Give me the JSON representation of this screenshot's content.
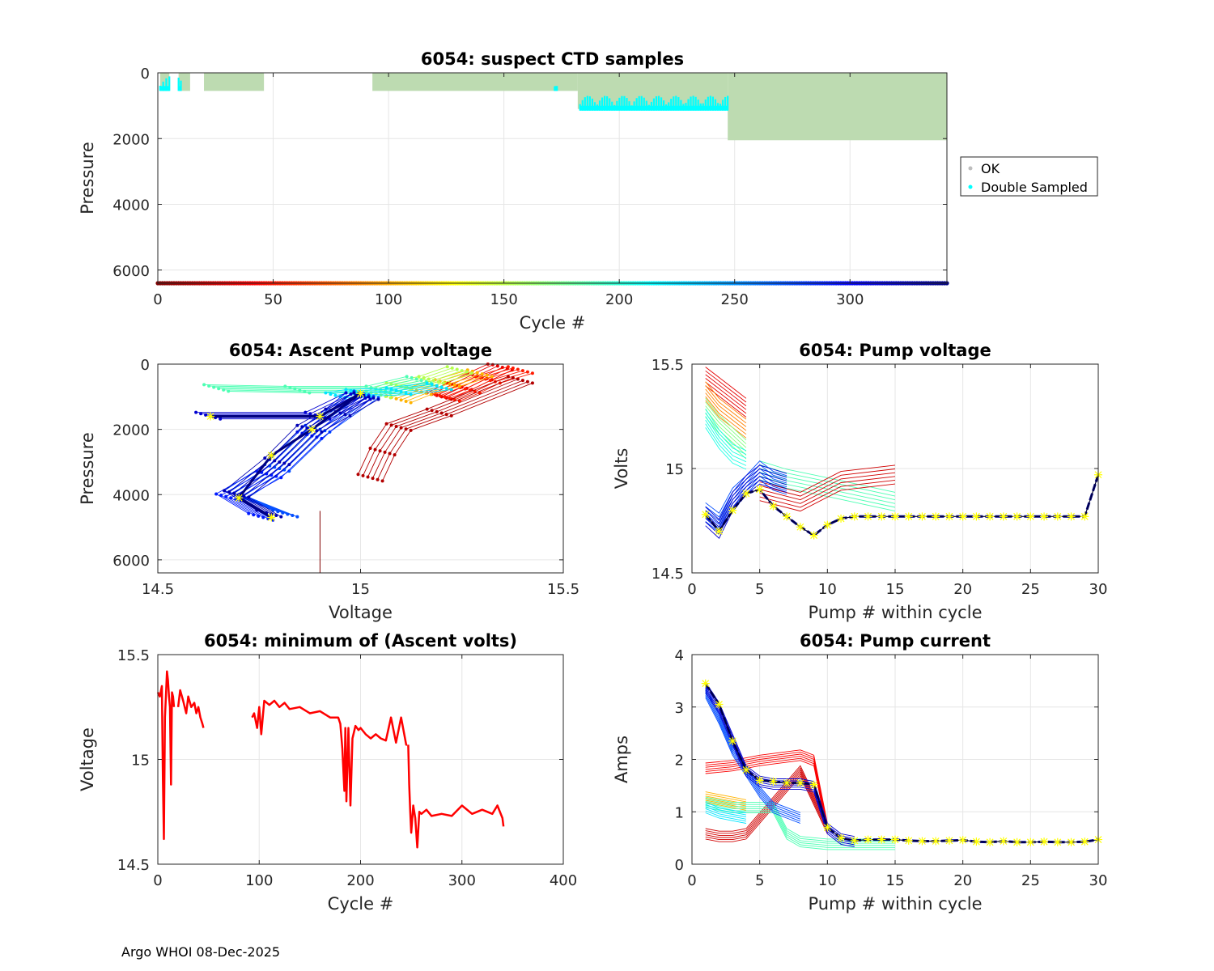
{
  "footer": "Argo WHOI 08-Dec-2025",
  "colors": {
    "ok": "#bddbb1",
    "double": "#00ffff",
    "cycle_line": "#ff0000",
    "ref": "#000080",
    "star": "#ffff00"
  },
  "chart_data": [
    {
      "id": "suspect",
      "type": "scatter",
      "title": "6054: suspect CTD samples",
      "xlabel": "Cycle #",
      "ylabel": "Pressure",
      "xlim": [
        0,
        342
      ],
      "ylim": [
        6400,
        0
      ],
      "xticks": [
        0,
        50,
        100,
        150,
        200,
        250,
        300
      ],
      "yticks": [
        0,
        2000,
        4000,
        6000
      ],
      "legend": {
        "position": "right",
        "items": [
          "OK",
          "Double Sampled"
        ]
      },
      "ok_blocks": [
        {
          "x": [
            1,
            5
          ],
          "p": [
            0,
            550
          ]
        },
        {
          "x": [
            9,
            14
          ],
          "p": [
            0,
            550
          ]
        },
        {
          "x": [
            20,
            46
          ],
          "p": [
            0,
            550
          ]
        },
        {
          "x": [
            93,
            182
          ],
          "p": [
            0,
            550
          ]
        },
        {
          "x": [
            182,
            247
          ],
          "p": [
            0,
            1100
          ]
        },
        {
          "x": [
            247,
            342
          ],
          "p": [
            0,
            2050
          ]
        }
      ],
      "double_sampled": [
        {
          "x": [
            1,
            5
          ],
          "p": [
            100,
            550
          ]
        },
        {
          "x": [
            9,
            10
          ],
          "p": [
            100,
            550
          ]
        },
        {
          "x": [
            172,
            173
          ],
          "p": [
            400,
            550
          ]
        },
        {
          "x": [
            183,
            247
          ],
          "p": [
            700,
            1150
          ]
        }
      ],
      "cycle_bar": {
        "p": 6400,
        "from": 0,
        "to": 342
      }
    },
    {
      "id": "ascent",
      "type": "line",
      "title": "6054: Ascent Pump voltage",
      "xlabel": "Voltage",
      "ylabel": "Pressure",
      "xlim": [
        14.5,
        15.5
      ],
      "ylim": [
        6400,
        0
      ],
      "xticks": [
        14.5,
        15,
        15.5
      ],
      "yticks": [
        0,
        2000,
        4000,
        6000
      ],
      "series": [
        {
          "name": "early",
          "cycle": 0.1,
          "x": [
            15.35,
            15.3,
            15.25,
            15.2
          ],
          "y": [
            100,
            400,
            700,
            1000
          ]
        },
        {
          "name": "early2",
          "cycle": 0.15,
          "x": [
            15.4,
            15.32,
            15.27,
            15.22
          ],
          "y": [
            200,
            500,
            800,
            1050
          ]
        },
        {
          "name": "mid",
          "cycle": 0.3,
          "x": [
            15.3,
            15.22,
            15.15,
            15.1
          ],
          "y": [
            300,
            600,
            850,
            1100
          ]
        },
        {
          "name": "mid2",
          "cycle": 0.45,
          "x": [
            15.25,
            15.18,
            15.1,
            15.05
          ],
          "y": [
            200,
            500,
            700,
            950
          ]
        },
        {
          "name": "green",
          "cycle": 0.55,
          "x": [
            15.15,
            15.05,
            14.85,
            14.65
          ],
          "y": [
            500,
            800,
            800,
            750
          ]
        },
        {
          "name": "cyan",
          "cycle": 0.65,
          "x": [
            15.2,
            15.1,
            15.0,
            14.95
          ],
          "y": [
            700,
            850,
            900,
            1000
          ]
        },
        {
          "name": "blue",
          "cycle": 0.8,
          "x": [
            15.02,
            14.9,
            14.8,
            14.7,
            14.82
          ],
          "y": [
            950,
            2000,
            3200,
            4000,
            4600
          ]
        },
        {
          "name": "blue2",
          "cycle": 0.85,
          "x": [
            15.0,
            14.88,
            14.78,
            14.68,
            14.76
          ],
          "y": [
            1000,
            2200,
            3400,
            4100,
            4700
          ]
        },
        {
          "name": "navy",
          "cycle": 0.95,
          "x": [
            15.02,
            14.95,
            14.88,
            14.8,
            14.7,
            14.78
          ],
          "y": [
            1000,
            1500,
            2000,
            3000,
            4000,
            4600
          ]
        },
        {
          "name": "navy_shelf",
          "cycle": 0.92,
          "x": [
            14.63,
            14.9,
            15.0
          ],
          "y": [
            1600,
            1600,
            1000
          ]
        },
        {
          "name": "outlier",
          "cycle": 0.05,
          "x": [
            15.03,
            15.06,
            15.1,
            15.2,
            15.4
          ],
          "y": [
            3500,
            2700,
            1950,
            1500,
            500
          ]
        }
      ],
      "reference_line": {
        "x": [
          14.63,
          14.9,
          15.0,
          14.88,
          14.78,
          14.7,
          14.78
        ],
        "y": [
          1600,
          1600,
          900,
          2000,
          2800,
          4100,
          4700
        ]
      },
      "vertical_line": {
        "x": 14.9,
        "y": [
          4500,
          6400
        ]
      }
    },
    {
      "id": "pumpvolt",
      "type": "line",
      "title": "6054: Pump voltage",
      "xlabel": "Pump # within cycle",
      "ylabel": "Volts",
      "xlim": [
        0,
        30
      ],
      "ylim": [
        14.5,
        15.5
      ],
      "xticks": [
        0,
        5,
        10,
        15,
        20,
        25,
        30
      ],
      "yticks": [
        14.5,
        15,
        15.5
      ],
      "ytick_labels": [
        "14.5",
        "15",
        "15.5"
      ],
      "series": [
        {
          "name": "early",
          "cycle": 0.1,
          "x": [
            1,
            2,
            3,
            4
          ],
          "y": [
            15.45,
            15.4,
            15.35,
            15.3
          ]
        },
        {
          "name": "orange",
          "cycle": 0.25,
          "x": [
            1,
            2,
            3,
            4
          ],
          "y": [
            15.38,
            15.3,
            15.25,
            15.2
          ]
        },
        {
          "name": "green",
          "cycle": 0.5,
          "x": [
            1,
            2,
            3,
            4
          ],
          "y": [
            15.3,
            15.22,
            15.16,
            15.1
          ]
        },
        {
          "name": "cyan",
          "cycle": 0.6,
          "x": [
            1,
            2,
            3,
            4
          ],
          "y": [
            15.25,
            15.15,
            15.08,
            15.05
          ]
        },
        {
          "name": "tail_green",
          "cycle": 0.55,
          "x": [
            5,
            7,
            10,
            15
          ],
          "y": [
            15.0,
            14.96,
            14.92,
            14.85
          ]
        },
        {
          "name": "tail_red",
          "cycle": 0.08,
          "x": [
            5,
            8,
            11,
            15
          ],
          "y": [
            14.9,
            14.85,
            14.95,
            14.98
          ]
        },
        {
          "name": "blue",
          "cycle": 0.8,
          "x": [
            1,
            2,
            3,
            4,
            5,
            6,
            7
          ],
          "y": [
            14.8,
            14.75,
            14.87,
            14.93,
            15.0,
            14.95,
            14.93
          ]
        },
        {
          "name": "navy",
          "cycle": 0.92,
          "x": [
            1,
            2,
            3,
            4,
            5,
            6,
            7
          ],
          "y": [
            14.78,
            14.72,
            14.85,
            14.93,
            14.98,
            14.96,
            14.94
          ]
        }
      ],
      "reference_line": {
        "x": [
          1,
          2,
          3,
          4,
          5,
          6,
          7,
          8,
          9,
          10,
          11,
          12,
          13,
          14,
          15,
          16,
          17,
          18,
          19,
          20,
          21,
          22,
          23,
          24,
          25,
          26,
          27,
          28,
          29,
          30
        ],
        "y": [
          14.78,
          14.7,
          14.8,
          14.88,
          14.9,
          14.82,
          14.77,
          14.72,
          14.68,
          14.73,
          14.76,
          14.77,
          14.77,
          14.77,
          14.77,
          14.77,
          14.77,
          14.77,
          14.77,
          14.77,
          14.77,
          14.77,
          14.77,
          14.77,
          14.77,
          14.77,
          14.77,
          14.77,
          14.77,
          14.97
        ]
      }
    },
    {
      "id": "minvolts",
      "type": "line",
      "title": "6054: minimum of (Ascent volts)",
      "xlabel": "Cycle #",
      "ylabel": "Voltage",
      "xlim": [
        0,
        400
      ],
      "ylim": [
        14.5,
        15.5
      ],
      "xticks": [
        0,
        100,
        200,
        300,
        400
      ],
      "yticks": [
        14.5,
        15,
        15.5
      ],
      "ytick_labels": [
        "14.5",
        "15",
        "15.5"
      ],
      "segments": [
        {
          "x": [
            0,
            2,
            4,
            5,
            6,
            7,
            8,
            9,
            10,
            11,
            12,
            13,
            14,
            15,
            16
          ],
          "y": [
            15.32,
            15.3,
            15.35,
            14.9,
            14.62,
            15.2,
            15.3,
            15.42,
            15.38,
            15.3,
            15.25,
            14.88,
            15.32,
            15.3,
            15.25
          ]
        },
        {
          "x": [
            20,
            22,
            25,
            28,
            30,
            33,
            36,
            38,
            40,
            42,
            44,
            45
          ],
          "y": [
            15.25,
            15.33,
            15.28,
            15.22,
            15.3,
            15.25,
            15.27,
            15.22,
            15.25,
            15.2,
            15.17,
            15.15
          ]
        },
        {
          "x": [
            93,
            95,
            98,
            100,
            102,
            105,
            110,
            115,
            120,
            125,
            130,
            140,
            150,
            160,
            170,
            178,
            180,
            182,
            184,
            185,
            186,
            188,
            190,
            192,
            195,
            198,
            200,
            205,
            210,
            215,
            220,
            225,
            230,
            235,
            240,
            245,
            246
          ],
          "y": [
            15.2,
            15.22,
            15.15,
            15.25,
            15.12,
            15.28,
            15.26,
            15.28,
            15.25,
            15.27,
            15.24,
            15.25,
            15.22,
            15.23,
            15.2,
            15.2,
            15.17,
            15.05,
            14.85,
            15.15,
            14.8,
            15.15,
            14.78,
            15.1,
            15.16,
            15.14,
            15.15,
            15.12,
            15.1,
            15.12,
            15.1,
            15.09,
            15.2,
            15.08,
            15.2,
            15.07,
            15.07
          ]
        },
        {
          "x": [
            247,
            248,
            249,
            250,
            252,
            254,
            256,
            258,
            260,
            265,
            270,
            280,
            290,
            300,
            310,
            320,
            330,
            335,
            340,
            341
          ],
          "y": [
            15.07,
            14.88,
            14.75,
            14.65,
            14.78,
            14.72,
            14.58,
            14.75,
            14.74,
            14.76,
            14.73,
            14.74,
            14.73,
            14.78,
            14.74,
            14.76,
            14.74,
            14.78,
            14.72,
            14.68
          ]
        }
      ]
    },
    {
      "id": "pumpcurrent",
      "type": "line",
      "title": "6054: Pump current",
      "xlabel": "Pump # within cycle",
      "ylabel": "Amps",
      "xlim": [
        0,
        30
      ],
      "ylim": [
        0,
        4
      ],
      "xticks": [
        0,
        5,
        10,
        15,
        20,
        25,
        30
      ],
      "yticks": [
        0,
        1,
        2,
        3,
        4
      ],
      "series": [
        {
          "name": "early",
          "cycle": 0.08,
          "x": [
            1,
            2,
            3,
            4,
            8,
            10
          ],
          "y": [
            0.6,
            0.55,
            0.55,
            0.6,
            1.8,
            0.7
          ]
        },
        {
          "name": "early2",
          "cycle": 0.12,
          "x": [
            1,
            3,
            5,
            8,
            9,
            10
          ],
          "y": [
            1.85,
            1.9,
            2.0,
            2.1,
            2.0,
            0.7
          ]
        },
        {
          "name": "orange",
          "cycle": 0.3,
          "x": [
            1,
            2,
            3,
            4
          ],
          "y": [
            1.3,
            1.25,
            1.2,
            1.15
          ]
        },
        {
          "name": "green",
          "cycle": 0.55,
          "x": [
            1,
            2,
            3,
            4,
            6,
            7,
            8,
            10,
            15
          ],
          "y": [
            1.2,
            1.15,
            1.1,
            1.1,
            1.1,
            0.6,
            0.45,
            0.4,
            0.4
          ]
        },
        {
          "name": "cyan",
          "cycle": 0.65,
          "x": [
            1,
            2,
            3,
            4
          ],
          "y": [
            1.1,
            1.0,
            0.95,
            0.9
          ]
        },
        {
          "name": "blue",
          "cycle": 0.8,
          "x": [
            1,
            2,
            3,
            4,
            5,
            6,
            7,
            8
          ],
          "y": [
            3.3,
            2.8,
            2.2,
            1.8,
            1.4,
            1.1,
            1.0,
            0.9
          ]
        },
        {
          "name": "navy",
          "cycle": 0.92,
          "x": [
            1,
            2,
            3,
            4,
            5,
            6,
            7,
            8,
            9,
            10,
            11,
            12
          ],
          "y": [
            3.4,
            3.0,
            2.4,
            1.8,
            1.6,
            1.55,
            1.55,
            1.55,
            1.5,
            0.7,
            0.5,
            0.45
          ]
        }
      ],
      "reference_line": {
        "x": [
          1,
          2,
          3,
          4,
          5,
          6,
          7,
          8,
          9,
          10,
          11,
          12,
          13,
          14,
          15,
          16,
          17,
          18,
          19,
          20,
          21,
          22,
          23,
          24,
          25,
          26,
          27,
          28,
          29,
          30
        ],
        "y": [
          3.45,
          3.05,
          2.35,
          1.8,
          1.6,
          1.58,
          1.55,
          1.55,
          1.52,
          0.7,
          0.5,
          0.45,
          0.47,
          0.47,
          0.47,
          0.45,
          0.44,
          0.44,
          0.45,
          0.46,
          0.43,
          0.42,
          0.44,
          0.42,
          0.42,
          0.43,
          0.42,
          0.42,
          0.43,
          0.47
        ]
      }
    }
  ]
}
